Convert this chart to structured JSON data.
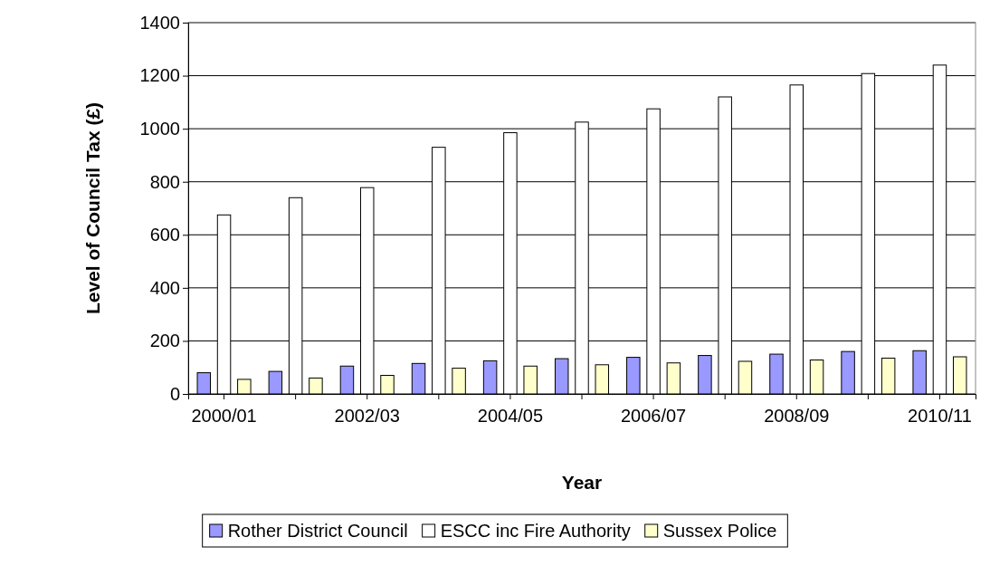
{
  "chart_data": {
    "type": "bar",
    "xlabel": "Year",
    "ylabel": "Level of Council Tax (£)",
    "categories": [
      "2000/01",
      null,
      "2002/03",
      null,
      "2004/05",
      null,
      "2006/07",
      null,
      "2008/09",
      null,
      "2010/11"
    ],
    "series": [
      {
        "name": "Rother District Council",
        "color": "#9999ff",
        "values": [
          80,
          85,
          105,
          115,
          125,
          133,
          138,
          145,
          150,
          160,
          163
        ]
      },
      {
        "name": "ESCC inc Fire Authority",
        "color": "#ffffff",
        "values": [
          675,
          740,
          778,
          930,
          985,
          1025,
          1075,
          1120,
          1165,
          1208,
          1240
        ]
      },
      {
        "name": "Sussex Police",
        "color": "#ffffcc",
        "values": [
          55,
          60,
          70,
          97,
          105,
          110,
          117,
          123,
          128,
          135,
          140
        ]
      }
    ],
    "ylim": [
      0,
      1400
    ],
    "yticks": [
      0,
      200,
      400,
      600,
      800,
      1000,
      1200,
      1400
    ],
    "grid": "y",
    "legend": "bottom"
  }
}
